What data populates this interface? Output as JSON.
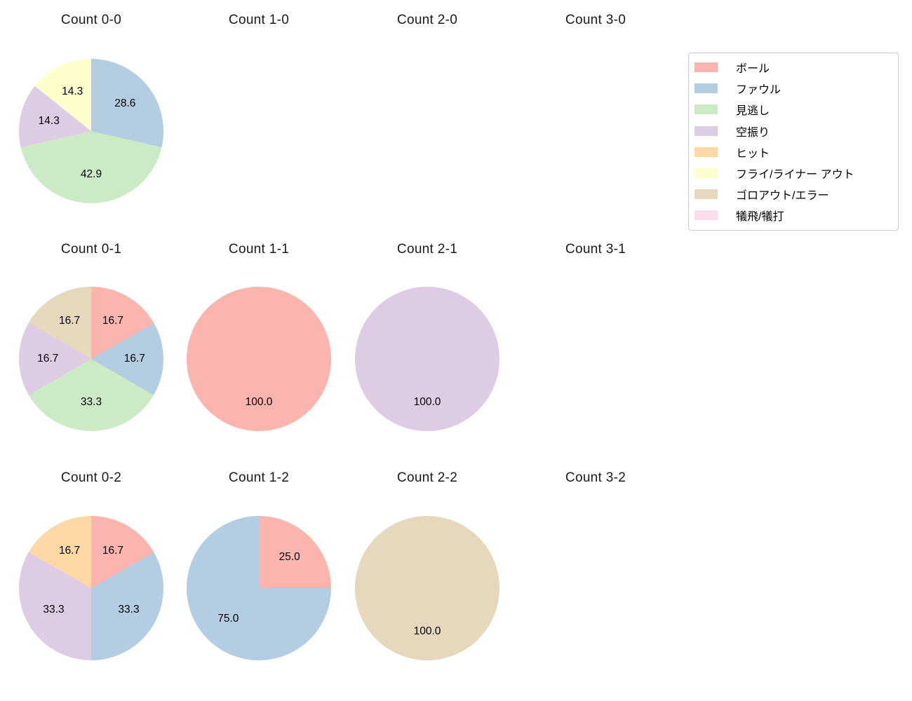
{
  "figure": {
    "background": "#ffffff",
    "text_color": "#1a1a1a"
  },
  "legend": {
    "position": "top-right",
    "border_color": "#cccccc",
    "items": [
      {
        "label": "ボール",
        "color": "#fbb4ae"
      },
      {
        "label": "ファウル",
        "color": "#b3cde3"
      },
      {
        "label": "見逃し",
        "color": "#ccebc5"
      },
      {
        "label": "空振り",
        "color": "#decbe4"
      },
      {
        "label": "ヒット",
        "color": "#fed9a6"
      },
      {
        "label": "フライ/ライナー アウト",
        "color": "#ffffcc"
      },
      {
        "label": "ゴロアウト/エラー",
        "color": "#e5d8bd"
      },
      {
        "label": "犠飛/犠打",
        "color": "#fddaec"
      }
    ]
  },
  "chart_data": [
    {
      "type": "pie",
      "title": "Count 0-0",
      "start": "top",
      "direction": "clockwise",
      "slices": [
        {
          "name": "ファウル",
          "value": 28.6,
          "pct": "28.6",
          "color": "#b3cde3"
        },
        {
          "name": "見逃し",
          "value": 42.9,
          "pct": "42.9",
          "color": "#ccebc5"
        },
        {
          "name": "空振り",
          "value": 14.3,
          "pct": "14.3",
          "color": "#decbe4"
        },
        {
          "name": "フライ/ライナー アウト",
          "value": 14.3,
          "pct": "14.3",
          "color": "#ffffcc"
        }
      ]
    },
    {
      "type": "pie",
      "title": "Count 1-0",
      "start": "top",
      "direction": "clockwise",
      "slices": []
    },
    {
      "type": "pie",
      "title": "Count 2-0",
      "start": "top",
      "direction": "clockwise",
      "slices": []
    },
    {
      "type": "pie",
      "title": "Count 3-0",
      "start": "top",
      "direction": "clockwise",
      "slices": []
    },
    {
      "type": "pie",
      "title": "Count 0-1",
      "start": "top",
      "direction": "clockwise",
      "slices": [
        {
          "name": "ボール",
          "value": 16.7,
          "pct": "16.7",
          "color": "#fbb4ae"
        },
        {
          "name": "ファウル",
          "value": 16.7,
          "pct": "16.7",
          "color": "#b3cde3"
        },
        {
          "name": "見逃し",
          "value": 33.3,
          "pct": "33.3",
          "color": "#ccebc5"
        },
        {
          "name": "空振り",
          "value": 16.7,
          "pct": "16.7",
          "color": "#decbe4"
        },
        {
          "name": "ゴロアウト/エラー",
          "value": 16.7,
          "pct": "16.7",
          "color": "#e5d8bd"
        }
      ]
    },
    {
      "type": "pie",
      "title": "Count 1-1",
      "start": "top",
      "direction": "clockwise",
      "slices": [
        {
          "name": "ボール",
          "value": 100.0,
          "pct": "100.0",
          "color": "#fbb4ae"
        }
      ]
    },
    {
      "type": "pie",
      "title": "Count 2-1",
      "start": "top",
      "direction": "clockwise",
      "slices": [
        {
          "name": "空振り",
          "value": 100.0,
          "pct": "100.0",
          "color": "#decbe4"
        }
      ]
    },
    {
      "type": "pie",
      "title": "Count 3-1",
      "start": "top",
      "direction": "clockwise",
      "slices": []
    },
    {
      "type": "pie",
      "title": "Count 0-2",
      "start": "top",
      "direction": "clockwise",
      "slices": [
        {
          "name": "ボール",
          "value": 16.7,
          "pct": "16.7",
          "color": "#fbb4ae"
        },
        {
          "name": "ファウル",
          "value": 33.3,
          "pct": "33.3",
          "color": "#b3cde3"
        },
        {
          "name": "空振り",
          "value": 33.3,
          "pct": "33.3",
          "color": "#decbe4"
        },
        {
          "name": "ヒット",
          "value": 16.7,
          "pct": "16.7",
          "color": "#fed9a6"
        }
      ]
    },
    {
      "type": "pie",
      "title": "Count 1-2",
      "start": "top",
      "direction": "clockwise",
      "slices": [
        {
          "name": "ボール",
          "value": 25.0,
          "pct": "25.0",
          "color": "#fbb4ae"
        },
        {
          "name": "ファウル",
          "value": 75.0,
          "pct": "75.0",
          "color": "#b3cde3"
        }
      ]
    },
    {
      "type": "pie",
      "title": "Count 2-2",
      "start": "top",
      "direction": "clockwise",
      "slices": [
        {
          "name": "ゴロアウト/エラー",
          "value": 100.0,
          "pct": "100.0",
          "color": "#e5d8bd"
        }
      ]
    },
    {
      "type": "pie",
      "title": "Count 3-2",
      "start": "top",
      "direction": "clockwise",
      "slices": []
    }
  ]
}
